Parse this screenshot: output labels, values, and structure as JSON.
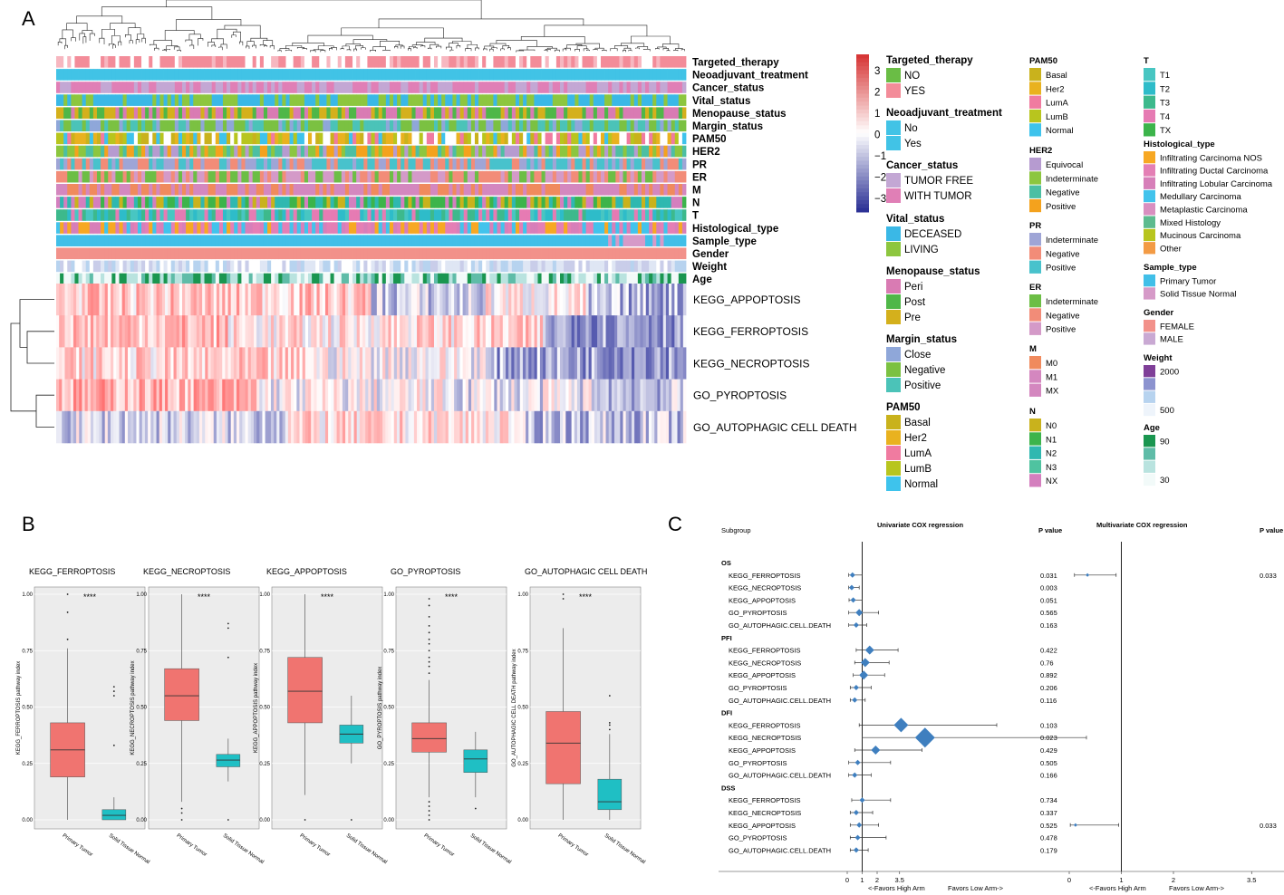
{
  "panels": {
    "a": "A",
    "b": "B",
    "c": "C"
  },
  "chart_data": [
    {
      "type": "heatmap",
      "annotation_tracks": [
        "Targeted_therapy",
        "Neoadjuvant_treatment",
        "Cancer_status",
        "Vital_status",
        "Menopause_status",
        "Margin_status",
        "PAM50",
        "HER2",
        "PR",
        "ER",
        "M",
        "N",
        "T",
        "Histological_type",
        "Sample_type",
        "Gender",
        "Weight",
        "Age"
      ],
      "rows": [
        "KEGG_APPOPTOSIS",
        "KEGG_FERROPTOSIS",
        "KEGG_NECROPTOSIS",
        "GO_PYROPTOSIS",
        "GO_AUTOPHAGIC CELL DEATH"
      ],
      "color_scale": {
        "ticks": [
          "3",
          "2",
          "1",
          "0",
          "−1",
          "−2",
          "−3"
        ],
        "high": "#d7302f",
        "mid": "#ffffff",
        "low": "#2c3296"
      },
      "legends": [
        {
          "title": "Targeted_therapy",
          "items": [
            {
              "label": "NO",
              "color": "#6abd45"
            },
            {
              "label": "YES",
              "color": "#f38c99"
            }
          ]
        },
        {
          "title": "Neoadjuvant_treatment",
          "items": [
            {
              "label": "No",
              "color": "#41c3e6"
            },
            {
              "label": "Yes",
              "color": "#41c3e6"
            }
          ]
        },
        {
          "title": "Cancer_status",
          "items": [
            {
              "label": "TUMOR FREE",
              "color": "#c3a7d4"
            },
            {
              "label": "WITH TUMOR",
              "color": "#e07fb6"
            }
          ]
        },
        {
          "title": "Vital_status",
          "items": [
            {
              "label": "DECEASED",
              "color": "#3ab8e6"
            },
            {
              "label": "LIVING",
              "color": "#8dc63f"
            }
          ]
        },
        {
          "title": "Menopause_status",
          "items": [
            {
              "label": "Peri",
              "color": "#d97bb3"
            },
            {
              "label": "Post",
              "color": "#4fb748"
            },
            {
              "label": "Pre",
              "color": "#d4b01c"
            }
          ]
        },
        {
          "title": "Margin_status",
          "items": [
            {
              "label": "Close",
              "color": "#8fa7d9"
            },
            {
              "label": "Negative",
              "color": "#7bc142"
            },
            {
              "label": "Positive",
              "color": "#4bc3b8"
            }
          ]
        },
        {
          "title": "PAM50",
          "items": [
            {
              "label": "Basal",
              "color": "#c9b21c"
            },
            {
              "label": "Her2",
              "color": "#e9b21f"
            },
            {
              "label": "LumA",
              "color": "#f07ba0"
            },
            {
              "label": "LumB",
              "color": "#b8c51e"
            },
            {
              "label": "Normal",
              "color": "#3ec3ec"
            }
          ]
        },
        {
          "title": "PAM50",
          "items": [
            {
              "label": "Basal",
              "color": "#c9b21c"
            },
            {
              "label": "Her2",
              "color": "#e9b21f"
            },
            {
              "label": "LumA",
              "color": "#f07ba0"
            },
            {
              "label": "LumB",
              "color": "#b8c51e"
            },
            {
              "label": "Normal",
              "color": "#3ec3ec"
            }
          ]
        },
        {
          "title": "HER2",
          "items": [
            {
              "label": "Equivocal",
              "color": "#b69bd0"
            },
            {
              "label": "Indeterminate",
              "color": "#8cc63f"
            },
            {
              "label": "Negative",
              "color": "#4cbfa3"
            },
            {
              "label": "Positive",
              "color": "#f4a21d"
            }
          ]
        },
        {
          "title": "PR",
          "items": [
            {
              "label": "Indeterminate",
              "color": "#9fa5d6"
            },
            {
              "label": "Negative",
              "color": "#f28c78"
            },
            {
              "label": "Positive",
              "color": "#48c2cc"
            }
          ]
        },
        {
          "title": "ER",
          "items": [
            {
              "label": "Indeterminate",
              "color": "#6cbe45"
            },
            {
              "label": "Negative",
              "color": "#f28c78"
            },
            {
              "label": "Positive",
              "color": "#d49ac8"
            }
          ]
        },
        {
          "title": "M",
          "items": [
            {
              "label": "M0",
              "color": "#f08a5d"
            },
            {
              "label": "M1",
              "color": "#d487bf"
            },
            {
              "label": "MX",
              "color": "#d487bf"
            }
          ]
        },
        {
          "title": "N",
          "items": [
            {
              "label": "N0",
              "color": "#c9b21c"
            },
            {
              "label": "N1",
              "color": "#3cb44b"
            },
            {
              "label": "N2",
              "color": "#2fb8b0"
            },
            {
              "label": "N3",
              "color": "#4fc3a0"
            },
            {
              "label": "NX",
              "color": "#d47fbe"
            }
          ]
        },
        {
          "title": "T",
          "items": [
            {
              "label": "T1",
              "color": "#48c6c2"
            },
            {
              "label": "T2",
              "color": "#2ebcc9"
            },
            {
              "label": "T3",
              "color": "#3db98c"
            },
            {
              "label": "T4",
              "color": "#e67bb3"
            },
            {
              "label": "TX",
              "color": "#3cb44b"
            }
          ]
        },
        {
          "title": "Histological_type",
          "items": [
            {
              "label": "Infiltrating Carcinoma NOS",
              "color": "#f7a823"
            },
            {
              "label": "Infiltrating Ductal Carcinoma",
              "color": "#e47fb5"
            },
            {
              "label": "Infiltrating Lobular Carcinoma",
              "color": "#d77fb9"
            },
            {
              "label": "Medullary Carcinoma",
              "color": "#42c3ec"
            },
            {
              "label": "Metaplastic Carcinoma",
              "color": "#d98fc0"
            },
            {
              "label": "Mixed Histology",
              "color": "#5dbb8f"
            },
            {
              "label": "Mucinous Carcinoma",
              "color": "#b8c51e"
            },
            {
              "label": "Other",
              "color": "#f39b45"
            }
          ]
        },
        {
          "title": "Sample_type",
          "items": [
            {
              "label": "Primary Tumor",
              "color": "#41bfe8"
            },
            {
              "label": "Solid Tissue Normal",
              "color": "#d69ac8"
            }
          ]
        },
        {
          "title": "Gender",
          "items": [
            {
              "label": "FEMALE",
              "color": "#f2918a"
            },
            {
              "label": "MALE",
              "color": "#c9a9d3"
            }
          ]
        },
        {
          "title": "Weight",
          "items": [
            {
              "label": "2000",
              "color": "#7f3f98"
            },
            {
              "label": "",
              "color": "#8c93cf"
            },
            {
              "label": "",
              "color": "#b7d3ef"
            },
            {
              "label": "500",
              "color": "#eef4fb"
            }
          ]
        },
        {
          "title": "Age",
          "items": [
            {
              "label": "90",
              "color": "#1a9650"
            },
            {
              "label": "",
              "color": "#5fbca8"
            },
            {
              "label": "",
              "color": "#b9e3df"
            },
            {
              "label": "30",
              "color": "#f2faf9"
            }
          ]
        }
      ]
    },
    {
      "type": "box",
      "categories": [
        "Primary Tumor",
        "Solid Tissue Normal"
      ],
      "ylim": [
        0,
        1
      ],
      "yticks": [
        "0.00",
        "0.25",
        "0.50",
        "0.75",
        "1.00"
      ],
      "series_colors": [
        "#f07470",
        "#1fbfc4"
      ],
      "significance": "****",
      "plots": [
        {
          "title": "KEGG_FERROPTOSIS",
          "ylabel": "KEGG_FERROPTOSIS  pathway index",
          "boxes": [
            {
              "min": 0.0,
              "q1": 0.19,
              "median": 0.31,
              "q3": 0.43,
              "max": 0.76,
              "outliers": [
                0.8,
                0.92,
                1.0
              ]
            },
            {
              "min": 0.0,
              "q1": 0.0,
              "median": 0.02,
              "q3": 0.045,
              "max": 0.1,
              "outliers": [
                0.33,
                0.55,
                0.57,
                0.59
              ]
            }
          ]
        },
        {
          "title": "KEGG_NECROPTOSIS",
          "ylabel": "KEGG_NECROPTOSIS  pathway index",
          "boxes": [
            {
              "min": 0.08,
              "q1": 0.44,
              "median": 0.55,
              "q3": 0.67,
              "max": 1.0,
              "outliers": [
                0.0,
                0.03,
                0.05
              ]
            },
            {
              "min": 0.17,
              "q1": 0.235,
              "median": 0.265,
              "q3": 0.29,
              "max": 0.36,
              "outliers": [
                0.0,
                0.72,
                0.85,
                0.87
              ]
            }
          ]
        },
        {
          "title": "KEGG_APPOPTOSIS",
          "ylabel": "KEGG_APPOPTOSIS  pathway index",
          "boxes": [
            {
              "min": 0.11,
              "q1": 0.43,
              "median": 0.57,
              "q3": 0.72,
              "max": 1.0,
              "outliers": [
                0.0
              ]
            },
            {
              "min": 0.25,
              "q1": 0.34,
              "median": 0.38,
              "q3": 0.42,
              "max": 0.55,
              "outliers": [
                0.0
              ]
            }
          ]
        },
        {
          "title": "GO_PYROPTOSIS",
          "ylabel": "GO_PYROPTOSIS  pathway index",
          "boxes": [
            {
              "min": 0.1,
              "q1": 0.3,
              "median": 0.36,
              "q3": 0.43,
              "max": 0.62,
              "outliers": [
                0.0,
                0.02,
                0.04,
                0.06,
                0.08,
                0.65,
                0.68,
                0.7,
                0.72,
                0.75,
                0.78,
                0.8,
                0.83,
                0.86,
                0.9,
                0.95,
                0.98
              ]
            },
            {
              "min": 0.1,
              "q1": 0.21,
              "median": 0.27,
              "q3": 0.31,
              "max": 0.39,
              "outliers": [
                0.05
              ]
            }
          ]
        },
        {
          "title": "GO_AUTOPHAGIC CELL DEATH",
          "ylabel": "GO_AUTOPHAGIC CELL DEATH  pathway index",
          "boxes": [
            {
              "min": 0.0,
              "q1": 0.16,
              "median": 0.34,
              "q3": 0.48,
              "max": 0.85,
              "outliers": [
                0.98,
                1.0
              ]
            },
            {
              "min": 0.0,
              "q1": 0.045,
              "median": 0.08,
              "q3": 0.18,
              "max": 0.38,
              "outliers": [
                0.4,
                0.42,
                0.43,
                0.55
              ]
            }
          ]
        }
      ]
    },
    {
      "type": "forest",
      "headers": {
        "subgroup": "Subgroup",
        "uni": "Univariate COX regression",
        "pval": "P value",
        "multi": "Multivariate COX regression",
        "pval2": "P value"
      },
      "uni_axis": {
        "ticks": [
          "0",
          "1",
          "2",
          "3.5"
        ],
        "values": [
          0,
          1,
          2,
          3.5
        ],
        "range": [
          -0.3,
          10.5
        ]
      },
      "multi_axis": {
        "ticks": [
          "0",
          "1",
          "2",
          "3.5"
        ],
        "values": [
          0,
          1,
          2,
          3.5
        ],
        "range": [
          -0.3,
          3.8
        ]
      },
      "footer_left": "<-Favors High Arm",
      "footer_right": "Favors Low Arm->",
      "groups": [
        {
          "name": "OS",
          "rows": [
            {
              "label": "KEGG_FERROPTOSIS",
              "hr": 0.35,
              "lo": 0.1,
              "hi": 1.0,
              "p": "0.031",
              "size": 3,
              "mhr": 0.35,
              "mlo": 0.1,
              "mhi": 0.9,
              "mp": "0.033"
            },
            {
              "label": "KEGG_NECROPTOSIS",
              "hr": 0.3,
              "lo": 0.1,
              "hi": 0.8,
              "p": "0.003",
              "size": 3
            },
            {
              "label": "KEGG_APPOPTOSIS",
              "hr": 0.4,
              "lo": 0.12,
              "hi": 1.0,
              "p": "0.051",
              "size": 3
            },
            {
              "label": "GO_PYROPTOSIS",
              "hr": 0.8,
              "lo": 0.1,
              "hi": 2.1,
              "p": "0.565",
              "size": 4
            },
            {
              "label": "GO_AUTOPHAGIC.CELL.DEATH",
              "hr": 0.6,
              "lo": 0.1,
              "hi": 1.3,
              "p": "0.163",
              "size": 3
            }
          ]
        },
        {
          "name": "PFI",
          "rows": [
            {
              "label": "KEGG_FERROPTOSIS",
              "hr": 1.5,
              "lo": 0.6,
              "hi": 3.4,
              "p": "0.422",
              "size": 5
            },
            {
              "label": "KEGG_NECROPTOSIS",
              "hr": 1.2,
              "lo": 0.5,
              "hi": 2.8,
              "p": "0.76",
              "size": 5
            },
            {
              "label": "KEGG_APPOPTOSIS",
              "hr": 1.1,
              "lo": 0.4,
              "hi": 2.5,
              "p": "0.892",
              "size": 5
            },
            {
              "label": "GO_PYROPTOSIS",
              "hr": 0.6,
              "lo": 0.2,
              "hi": 1.6,
              "p": "0.206",
              "size": 3
            },
            {
              "label": "GO_AUTOPHAGIC.CELL.DEATH",
              "hr": 0.5,
              "lo": 0.2,
              "hi": 1.2,
              "p": "0.116",
              "size": 3
            }
          ]
        },
        {
          "name": "DFI",
          "rows": [
            {
              "label": "KEGG_FERROPTOSIS",
              "hr": 3.6,
              "lo": 0.8,
              "hi": 10.0,
              "p": "0.103",
              "size": 8
            },
            {
              "label": "KEGG_NECROPTOSIS",
              "hr": 5.2,
              "lo": 1.0,
              "hi": 16.0,
              "p": "0.023",
              "size": 11
            },
            {
              "label": "KEGG_APPOPTOSIS",
              "hr": 1.9,
              "lo": 0.5,
              "hi": 5.0,
              "p": "0.429",
              "size": 5
            },
            {
              "label": "GO_PYROPTOSIS",
              "hr": 0.7,
              "lo": 0.1,
              "hi": 2.9,
              "p": "0.505",
              "size": 3
            },
            {
              "label": "GO_AUTOPHAGIC.CELL.DEATH",
              "hr": 0.5,
              "lo": 0.1,
              "hi": 1.6,
              "p": "0.166",
              "size": 3
            }
          ]
        },
        {
          "name": "DSS",
          "rows": [
            {
              "label": "KEGG_FERROPTOSIS",
              "hr": 1.0,
              "lo": 0.3,
              "hi": 2.9,
              "p": "0.734",
              "size": 3
            },
            {
              "label": "KEGG_NECROPTOSIS",
              "hr": 0.6,
              "lo": 0.2,
              "hi": 1.7,
              "p": "0.337",
              "size": 3
            },
            {
              "label": "KEGG_APPOPTOSIS",
              "hr": 0.8,
              "lo": 0.2,
              "hi": 2.1,
              "p": "0.525",
              "size": 3,
              "mhr": 0.12,
              "mlo": 0.02,
              "mhi": 0.95,
              "mp": "0.033"
            },
            {
              "label": "GO_PYROPTOSIS",
              "hr": 0.7,
              "lo": 0.2,
              "hi": 2.6,
              "p": "0.478",
              "size": 3
            },
            {
              "label": "GO_AUTOPHAGIC.CELL.DEATH",
              "hr": 0.6,
              "lo": 0.2,
              "hi": 1.4,
              "p": "0.179",
              "size": 3
            }
          ]
        }
      ]
    }
  ]
}
